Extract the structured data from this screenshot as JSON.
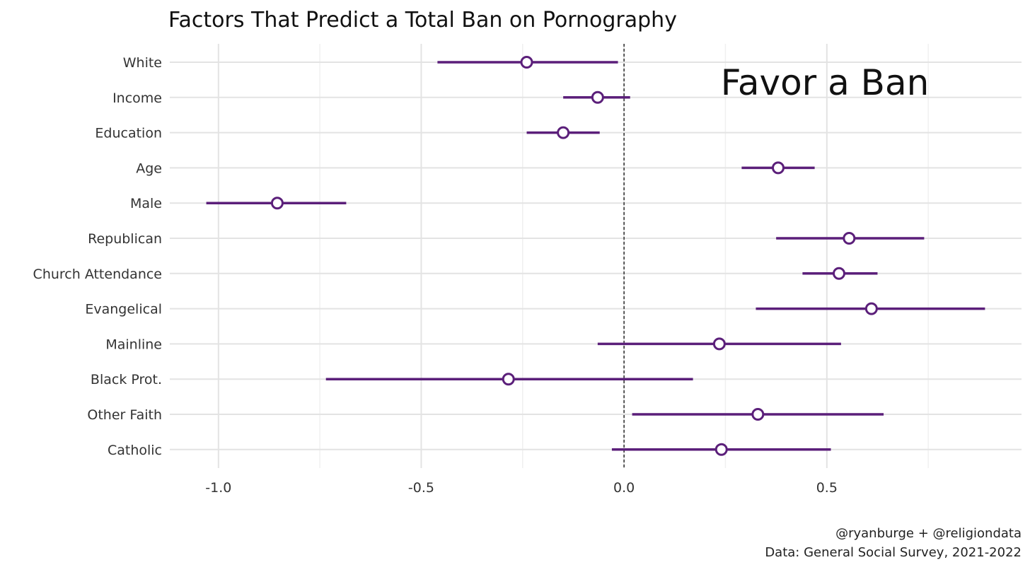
{
  "chart_data": {
    "type": "scatter",
    "title": "Factors That Predict a Total Ban on Pornography",
    "annotation": "Favor a Ban",
    "caption_lines": [
      "@ryanburge + @religiondata",
      "Data: General Social Survey, 2021-2022"
    ],
    "xlim": [
      -1.12,
      0.98
    ],
    "x_ticks": [
      -1.0,
      -0.5,
      0.0,
      0.5
    ],
    "x_tick_labels": [
      "-1.0",
      "-0.5",
      "0.0",
      "0.5"
    ],
    "reference_line": 0.0,
    "grid": true,
    "point_color": "#5b1f7a",
    "categories": [
      "White",
      "Income",
      "Education",
      "Age",
      "Male",
      "Republican",
      "Church Attendance",
      "Evangelical",
      "Mainline",
      "Black Prot.",
      "Other Faith",
      "Catholic"
    ],
    "estimates": [
      -0.24,
      -0.065,
      -0.15,
      0.38,
      -0.855,
      0.555,
      0.53,
      0.61,
      0.235,
      -0.285,
      0.33,
      0.24
    ],
    "lower": [
      -0.46,
      -0.15,
      -0.24,
      0.29,
      -1.03,
      0.375,
      0.44,
      0.325,
      -0.065,
      -0.735,
      0.02,
      -0.03
    ],
    "upper": [
      -0.015,
      0.015,
      -0.06,
      0.47,
      -0.685,
      0.74,
      0.625,
      0.89,
      0.535,
      0.17,
      0.64,
      0.51
    ]
  }
}
